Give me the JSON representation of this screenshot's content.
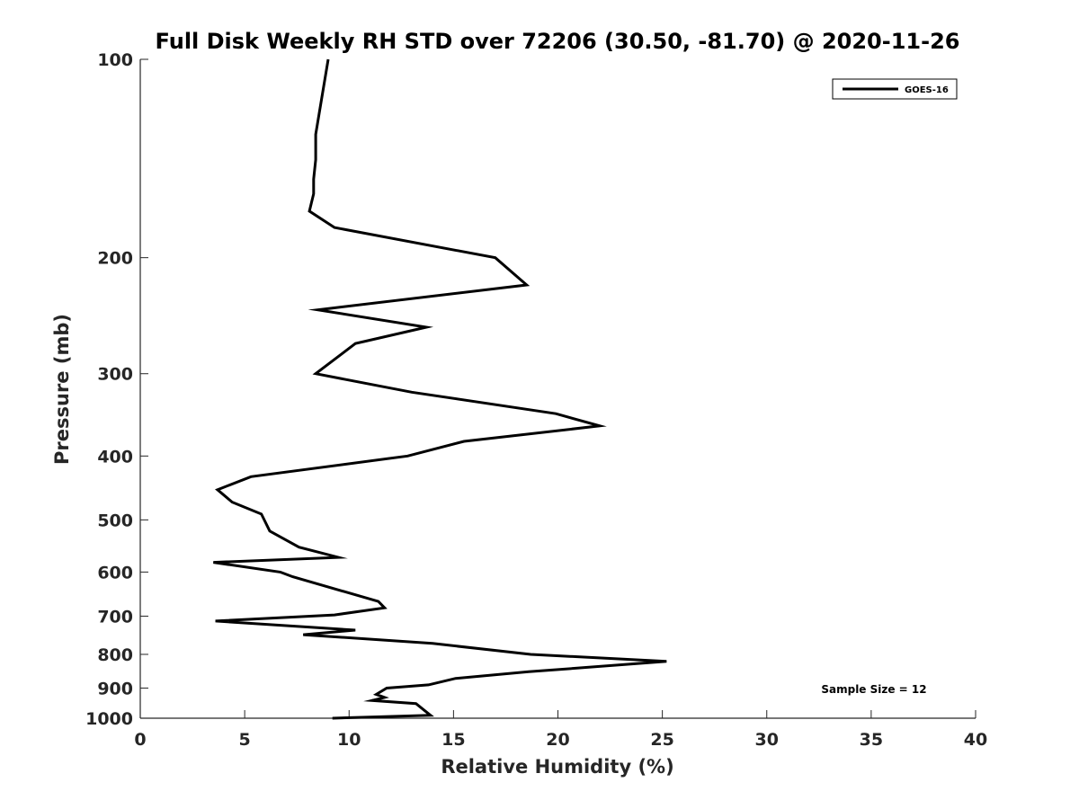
{
  "chart_data": {
    "type": "line",
    "title": "Full Disk Weekly RH STD over 72206 (30.50, -81.70) @ 2020-11-26",
    "xlabel": "Relative Humidity (%)",
    "ylabel": "Pressure (mb)",
    "xlim": [
      0,
      40
    ],
    "ylim": [
      100,
      1000
    ],
    "y_scale": "log",
    "y_direction": "reversed",
    "x_ticks": [
      0,
      5,
      10,
      15,
      20,
      25,
      30,
      35,
      40
    ],
    "y_ticks": [
      100,
      200,
      300,
      400,
      500,
      600,
      700,
      800,
      900,
      1000
    ],
    "grid": false,
    "legend": {
      "position": "top-right",
      "entries": [
        "GOES-16"
      ]
    },
    "annotation": "Sample Size = 12",
    "series": [
      {
        "name": "GOES-16",
        "color": "#000000",
        "x": [
          9.0,
          8.4,
          8.4,
          8.3,
          8.3,
          8.1,
          9.3,
          17.0,
          18.5,
          8.5,
          13.7,
          10.3,
          8.4,
          13.0,
          19.9,
          22.0,
          15.5,
          12.8,
          5.3,
          3.7,
          4.4,
          5.8,
          6.2,
          7.6,
          9.5,
          3.5,
          6.7,
          7.3,
          11.4,
          11.7,
          9.3,
          3.6,
          10.3,
          7.8,
          14.0,
          18.7,
          25.2,
          18.6,
          15.1,
          13.8,
          11.8,
          11.3,
          11.7,
          11.1,
          13.2,
          13.9,
          9.2
        ],
        "y": [
          100,
          130,
          142,
          152,
          160,
          170,
          180,
          200,
          220,
          240,
          255,
          270,
          300,
          320,
          345,
          360,
          380,
          400,
          430,
          450,
          470,
          490,
          520,
          550,
          570,
          580,
          600,
          610,
          665,
          680,
          697,
          712,
          735,
          747,
          770,
          800,
          820,
          850,
          870,
          890,
          900,
          920,
          930,
          940,
          950,
          990,
          1000
        ]
      }
    ]
  }
}
